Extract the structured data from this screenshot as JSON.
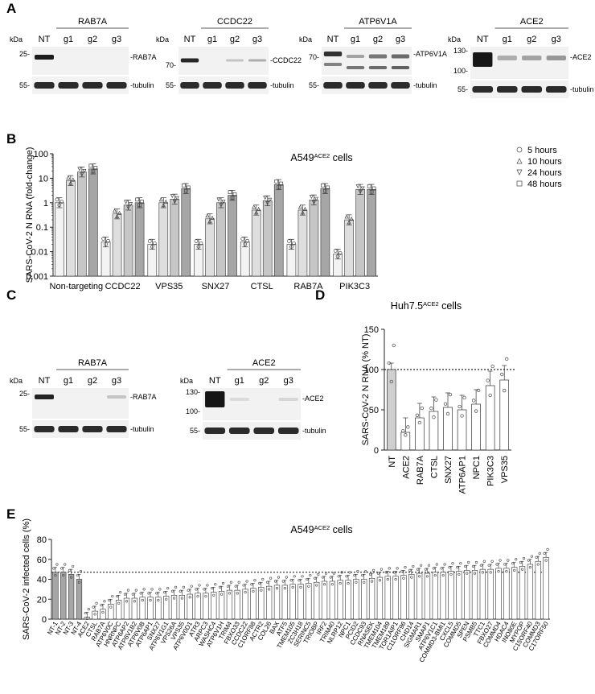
{
  "panels": {
    "A": "A",
    "B": "B",
    "C": "C",
    "D": "D",
    "E": "E"
  },
  "blots": {
    "kda": "kDa",
    "lanes": [
      "NT",
      "g1",
      "g2",
      "g3"
    ],
    "tubulin": "-tubulin",
    "A": [
      {
        "target": "RAB7A",
        "label": "-RAB7A",
        "markers": [
          "25-",
          "55-"
        ]
      },
      {
        "target": "CCDC22",
        "label": "-CCDC22",
        "markers": [
          "70-",
          "55-"
        ]
      },
      {
        "target": "ATP6V1A",
        "label": "-ATP6V1A",
        "markers": [
          "70-",
          "55-"
        ]
      },
      {
        "target": "ACE2",
        "label": "-ACE2",
        "markers": [
          "130-",
          "100-",
          "55-"
        ]
      }
    ],
    "C": [
      {
        "target": "RAB7A",
        "label": "-RAB7A",
        "markers": [
          "25-",
          "55-"
        ]
      },
      {
        "target": "ACE2",
        "label": "-ACE2",
        "markers": [
          "130-",
          "100-",
          "55-"
        ]
      }
    ]
  },
  "chart_data": [
    {
      "panel": "B",
      "type": "bar",
      "title": "A549ACE2 cells",
      "ylabel": "SARS-CoV-2 N RNA (fold-change)",
      "yscale": "log",
      "ylim": [
        0.001,
        100
      ],
      "yticks": [
        "100",
        "10",
        "1",
        "0.1",
        "0.01",
        "0.001"
      ],
      "categories": [
        "Non-targeting",
        "CCDC22",
        "VPS35",
        "SNX27",
        "CTSL",
        "RAB7A",
        "PIK3C3"
      ],
      "series": [
        {
          "name": "5 hours",
          "values": [
            1.0,
            0.025,
            0.02,
            0.02,
            0.025,
            0.02,
            0.008
          ]
        },
        {
          "name": "10 hours",
          "values": [
            8,
            0.35,
            1.0,
            0.22,
            0.5,
            0.5,
            0.2
          ]
        },
        {
          "name": "24 hours",
          "values": [
            18,
            0.8,
            1.4,
            1.0,
            1.2,
            1.3,
            3.5
          ]
        },
        {
          "name": "48 hours",
          "values": [
            24,
            1.0,
            3.8,
            2.0,
            5.5,
            3.8,
            3.5
          ]
        }
      ],
      "colors": [
        "#f3f3f3",
        "#dedede",
        "#c6c6c6",
        "#a6a6a6"
      ],
      "legend_position": "top-right"
    },
    {
      "panel": "D",
      "type": "bar",
      "title": "Huh7.5ACE2 cells",
      "ylabel": "SARS-CoV-2 N RNA (% NT)",
      "ylim": [
        0,
        150
      ],
      "yticks": [
        "150",
        "100",
        "50",
        "0"
      ],
      "reference_line": 100,
      "categories": [
        "NT",
        "ACE2",
        "RAB7A",
        "CTSL",
        "SNX27",
        "ATP6AP1",
        "NPC1",
        "PIK3C3",
        "VPS35"
      ],
      "values": [
        100,
        22,
        40,
        48,
        53,
        50,
        57,
        80,
        87
      ]
    },
    {
      "panel": "E",
      "type": "bar",
      "title": "A549ACE2 cells",
      "ylabel": "SARS-CoV-2 infected cells (%)",
      "ylim": [
        0,
        80
      ],
      "yticks": [
        "80",
        "60",
        "40",
        "20",
        "0"
      ],
      "reference_line": 47,
      "categories": [
        "NT-1",
        "NT-2",
        "NT-3",
        "NT-4",
        "ACE2",
        "CTSL",
        "RAB7A",
        "ATP6V0C",
        "HNRNPC",
        "ATP6AP2",
        "ATP6V1B2",
        "ATP6V0B",
        "ATP6AP1",
        "SNX27",
        "ATP6V1G1",
        "VPS26A",
        "VPS35",
        "ATP6V0D1",
        "ATR3",
        "ARPC3",
        "WASHC4",
        "ATP6V1H",
        "TRIM4",
        "FBXO33",
        "CCDC22",
        "C1ORF88",
        "ACTR2",
        "COL26",
        "BAX",
        "ATF5",
        "TMEM105",
        "ZC3H18",
        "SERINC5",
        "TRIOBP",
        "IRF2",
        "TRIM40",
        "NLRP12",
        "NPC1",
        "PCID2",
        "CCDC93",
        "RNASEK",
        "TMEM104",
        "TMEM189",
        "TOR1AIP1",
        "C11ORF96",
        "CHD14",
        "SIGMAR1",
        "SMAP1",
        "ATP6V1C1",
        "COMMD3-BMI1",
        "CXCL5",
        "COMMD5",
        "SPEN",
        "PSMB5",
        "TTC1",
        "FBXO27",
        "COMMD4",
        "HDAC4",
        "INO80E",
        "MYPOP",
        "C15ORF40",
        "COMMD3",
        "C17ORF50"
      ],
      "values": [
        47,
        47,
        45,
        40,
        2,
        8,
        10,
        15,
        19,
        21,
        21,
        22,
        22,
        22,
        23,
        24,
        24,
        25,
        26,
        26,
        27,
        28,
        29,
        29,
        30,
        31,
        32,
        33,
        34,
        34,
        35,
        35,
        36,
        37,
        38,
        38,
        39,
        39,
        40,
        40,
        41,
        42,
        43,
        43,
        44,
        45,
        46,
        46,
        47,
        47,
        48,
        48,
        49,
        49,
        50,
        50,
        51,
        51,
        52,
        53,
        55,
        58,
        62
      ],
      "highlight_count": 4
    }
  ]
}
